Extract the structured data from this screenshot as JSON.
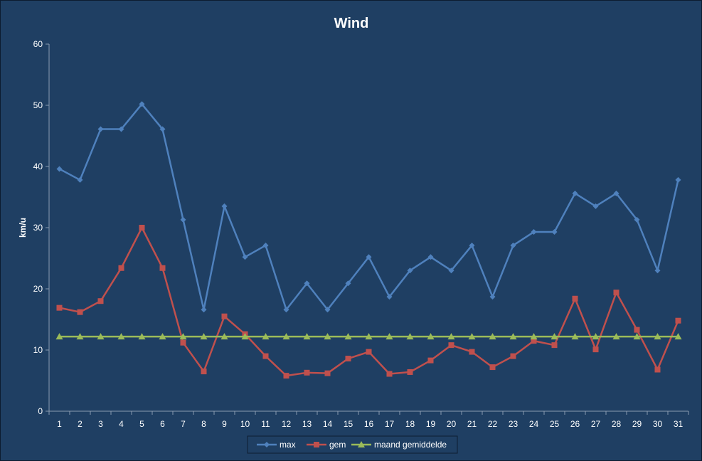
{
  "chart_data": {
    "type": "line",
    "title": "Wind",
    "xlabel": "",
    "ylabel": "km/u",
    "x": [
      1,
      2,
      3,
      4,
      5,
      6,
      7,
      8,
      9,
      10,
      11,
      12,
      13,
      14,
      15,
      16,
      17,
      18,
      19,
      20,
      21,
      22,
      23,
      24,
      25,
      26,
      27,
      28,
      29,
      30,
      31
    ],
    "ylim": [
      0,
      60
    ],
    "yticks": [
      0,
      10,
      20,
      30,
      40,
      50,
      60
    ],
    "grid": false,
    "legend_position": "bottom",
    "series": [
      {
        "name": "max",
        "color": "#4f81bd",
        "marker": "diamond",
        "values": [
          39.6,
          37.8,
          46.1,
          46.1,
          50.2,
          46.1,
          31.3,
          16.6,
          33.5,
          25.2,
          27.1,
          16.6,
          20.9,
          16.6,
          20.9,
          25.2,
          18.7,
          23.0,
          25.2,
          23.0,
          27.1,
          18.7,
          27.1,
          29.3,
          29.3,
          35.6,
          33.5,
          35.6,
          31.3,
          23.0,
          37.8
        ]
      },
      {
        "name": "gem",
        "color": "#c0504d",
        "marker": "square",
        "values": [
          16.9,
          16.2,
          18.0,
          23.4,
          30.0,
          23.4,
          11.2,
          6.5,
          15.5,
          12.6,
          9.0,
          5.8,
          6.3,
          6.2,
          8.6,
          9.7,
          6.1,
          6.4,
          8.3,
          10.8,
          9.7,
          7.2,
          9.0,
          11.5,
          10.8,
          18.4,
          10.1,
          19.4,
          13.3,
          6.8,
          14.8
        ]
      },
      {
        "name": "maand gemiddelde",
        "color": "#9bbb59",
        "marker": "triangle",
        "values": [
          12.2,
          12.2,
          12.2,
          12.2,
          12.2,
          12.2,
          12.2,
          12.2,
          12.2,
          12.2,
          12.2,
          12.2,
          12.2,
          12.2,
          12.2,
          12.2,
          12.2,
          12.2,
          12.2,
          12.2,
          12.2,
          12.2,
          12.2,
          12.2,
          12.2,
          12.2,
          12.2,
          12.2,
          12.2,
          12.2,
          12.2
        ]
      }
    ]
  }
}
